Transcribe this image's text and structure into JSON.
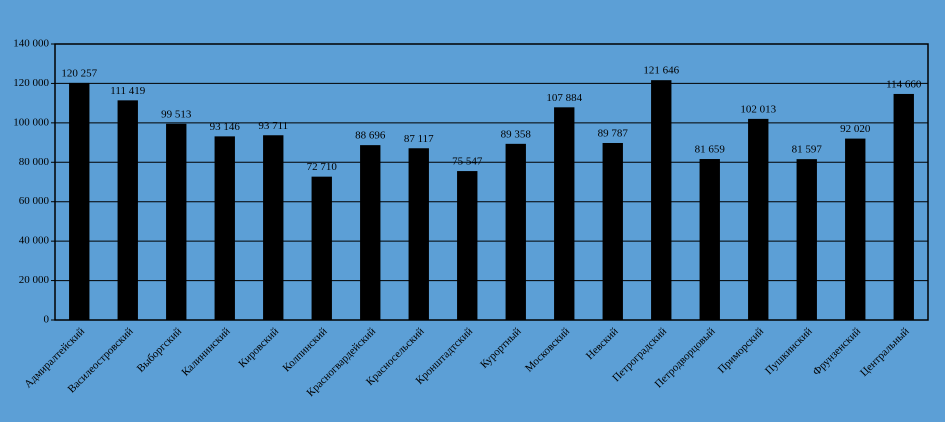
{
  "chart_data": {
    "type": "bar",
    "categories": [
      "Адмиралтейский",
      "Василеостровский",
      "Выборгский",
      "Калининский",
      "Кировский",
      "Колпинский",
      "Красногвардейский",
      "Красносельский",
      "Кронштадтский",
      "Курортный",
      "Московский",
      "Невский",
      "Петроградский",
      "Петродворцовый",
      "Приморский",
      "Пушкинский",
      "Фрунзенский",
      "Центральный"
    ],
    "values": [
      120257,
      111419,
      99513,
      93146,
      93711,
      72710,
      88696,
      87117,
      75547,
      89358,
      107884,
      89787,
      121646,
      81659,
      102013,
      81597,
      92020,
      114660
    ],
    "value_labels": [
      "120 257",
      "111 419",
      "99 513",
      "93 146",
      "93 711",
      "72 710",
      "88 696",
      "87 117",
      "75 547",
      "89 358",
      "107 884",
      "89 787",
      "121 646",
      "81 659",
      "102 013",
      "81 597",
      "92 020",
      "114 660"
    ],
    "color": "#000000",
    "ylim": [
      0,
      140000
    ],
    "yticks": [
      {
        "value": 0,
        "label": "0"
      },
      {
        "value": 20000,
        "label": "20 000"
      },
      {
        "value": 40000,
        "label": "40 000"
      },
      {
        "value": 60000,
        "label": "60 000"
      },
      {
        "value": 80000,
        "label": "80 000"
      },
      {
        "value": 100000,
        "label": "100 000"
      },
      {
        "value": 120000,
        "label": "120 000"
      },
      {
        "value": 140000,
        "label": "140 000"
      }
    ],
    "grid": true
  }
}
